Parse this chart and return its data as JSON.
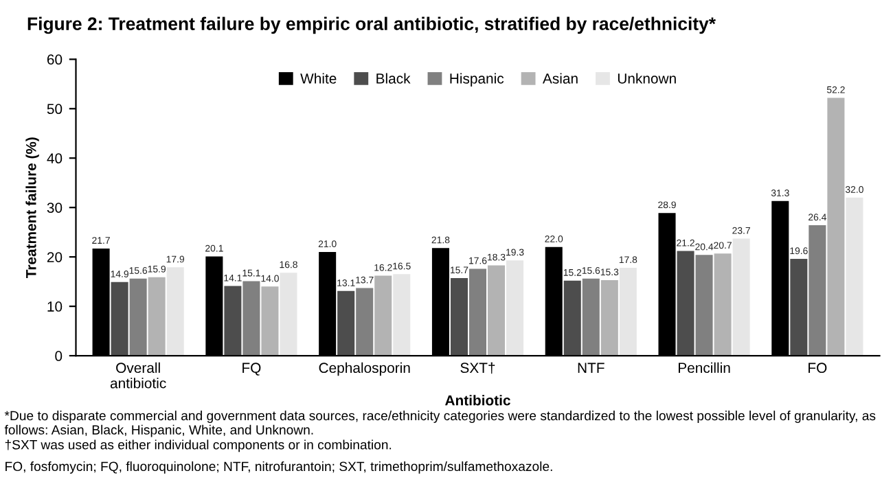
{
  "chart_data": {
    "type": "bar",
    "title": "Figure 2: Treatment failure by empiric oral antibiotic, stratified by race/ethnicity*",
    "xlabel": "Antibiotic",
    "ylabel": "Treatment failure (%)",
    "categories": [
      "Overall\nantibiotic",
      "FQ",
      "Cephalosporin",
      "SXT†",
      "NTF",
      "Pencillin",
      "FO"
    ],
    "series": [
      {
        "name": "White",
        "color": "#000000",
        "values": [
          21.7,
          20.1,
          21.0,
          21.8,
          22.0,
          28.9,
          31.3
        ],
        "value_labels": [
          "21.7",
          "20.1",
          "21.0",
          "21.8",
          "22.0",
          "28.9",
          "31.3"
        ]
      },
      {
        "name": "Black",
        "color": "#4d4d4d",
        "values": [
          14.9,
          14.1,
          13.1,
          15.7,
          15.2,
          21.2,
          19.6
        ],
        "value_labels": [
          "14.9",
          "14.1",
          "13.1",
          "15.7",
          "15.2",
          "21.2",
          "19.6"
        ]
      },
      {
        "name": "Hispanic",
        "color": "#808080",
        "values": [
          15.6,
          15.1,
          13.7,
          17.6,
          15.6,
          20.4,
          26.4
        ],
        "value_labels": [
          "15.6",
          "15.1",
          "13.7",
          "17.6",
          "15.6",
          "20.4",
          "26.4"
        ]
      },
      {
        "name": "Asian",
        "color": "#b3b3b3",
        "values": [
          15.9,
          14.0,
          16.2,
          18.3,
          15.3,
          20.7,
          52.2
        ],
        "value_labels": [
          "15.9",
          "14.0",
          "16.2",
          "18.3",
          "15.3",
          "20.7",
          "52.2"
        ]
      },
      {
        "name": "Unknown",
        "color": "#e6e6e6",
        "values": [
          17.9,
          16.8,
          16.5,
          19.3,
          17.8,
          23.7,
          32.0
        ],
        "value_labels": [
          "17.9",
          "16.8",
          "16.5",
          "19.3",
          "17.8",
          "23.7",
          "32.0"
        ]
      }
    ],
    "ylim": [
      0,
      60
    ],
    "yticks": [
      0,
      10,
      20,
      30,
      40,
      50,
      60
    ],
    "grid": false,
    "legend": "top",
    "annotations": [
      "*Due to disparate commercial and government data sources, race/ethnicity categories were standardized to the lowest possible level of granularity, as follows: Asian, Black, Hispanic, White, and Unknown.",
      "†SXT was used as either individual components or in combination.",
      "FO, fosfomycin; FQ, fluoroquinolone; NTF, nitrofurantoin; SXT, trimethoprim/sulfamethoxazole."
    ]
  }
}
